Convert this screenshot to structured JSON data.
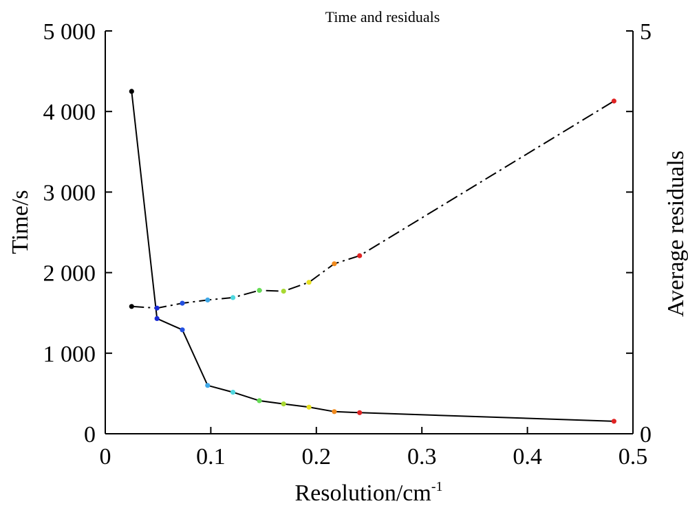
{
  "chart_data": {
    "type": "line",
    "title": "Time and residuals",
    "xlabel": "Resolution/cm",
    "xlabel_superscript": "-1",
    "ylabel_left": "Time/s",
    "ylabel_right": "Average residuals",
    "xlim": [
      0,
      0.5
    ],
    "ylim_left": [
      0,
      5000
    ],
    "ylim_right": [
      0,
      5
    ],
    "x_ticks": [
      0,
      0.1,
      0.2,
      0.3,
      0.4,
      0.5
    ],
    "x_tick_labels": [
      "0",
      "0.1",
      "0.2",
      "0.3",
      "0.4",
      "0.5"
    ],
    "y_left_ticks": [
      0,
      1000,
      2000,
      3000,
      4000,
      5000
    ],
    "y_left_tick_labels": [
      "0",
      "1 000",
      "2 000",
      "3 000",
      "4 000",
      "5 000"
    ],
    "y_right_ticks": [
      0,
      1,
      2,
      3,
      4,
      5
    ],
    "y_right_tick_labels": [
      "0",
      "",
      "",
      "",
      "",
      "5"
    ],
    "grid": false,
    "x": [
      0.025,
      0.049,
      0.073,
      0.097,
      0.121,
      0.146,
      0.169,
      0.193,
      0.217,
      0.241,
      0.482
    ],
    "point_colors": [
      "#000000",
      "#1a2bd6",
      "#2350e0",
      "#3fa8e8",
      "#4fd8e0",
      "#66dd55",
      "#a8d832",
      "#e8e020",
      "#f08a1e",
      "#e02424",
      "#e02424"
    ],
    "series": [
      {
        "axis": "left",
        "line_style": "solid",
        "values": [
          4250,
          1430,
          1290,
          600,
          515,
          410,
          370,
          330,
          275,
          262,
          155
        ]
      },
      {
        "axis": "right",
        "line_style": "dash-dot",
        "values": [
          1.58,
          1.56,
          1.62,
          1.66,
          1.69,
          1.78,
          1.77,
          1.88,
          2.11,
          2.21,
          4.13
        ]
      }
    ]
  }
}
